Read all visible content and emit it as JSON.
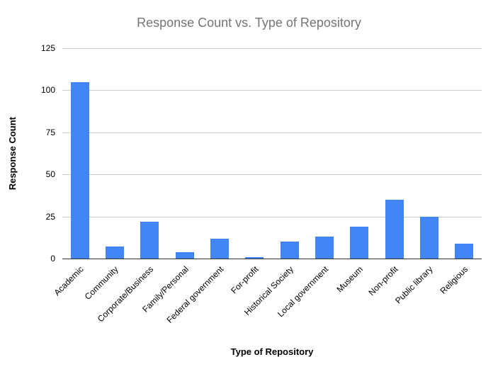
{
  "chart_data": {
    "type": "bar",
    "title": "Response Count vs. Type of Repository",
    "xlabel": "Type of Repository",
    "ylabel": "Response Count",
    "categories": [
      "Academic",
      "Community",
      "Corporate/Business",
      "Family/Personal",
      "Federal government",
      "For-profit",
      "Historical Society",
      "Local government",
      "Museum",
      "Non-profit",
      "Public library",
      "Religious"
    ],
    "values": [
      105,
      7,
      22,
      4,
      12,
      1,
      10,
      13,
      19,
      35,
      25,
      9
    ],
    "ylim": [
      0,
      125
    ],
    "yticks": [
      0,
      25,
      50,
      75,
      100,
      125
    ],
    "legend": "none",
    "grid": true,
    "bar_color": "#4285f4",
    "gridline_color": "#cccccc",
    "axis_line_color": "#333333",
    "title_color": "#757575",
    "background": "#ffffff"
  }
}
